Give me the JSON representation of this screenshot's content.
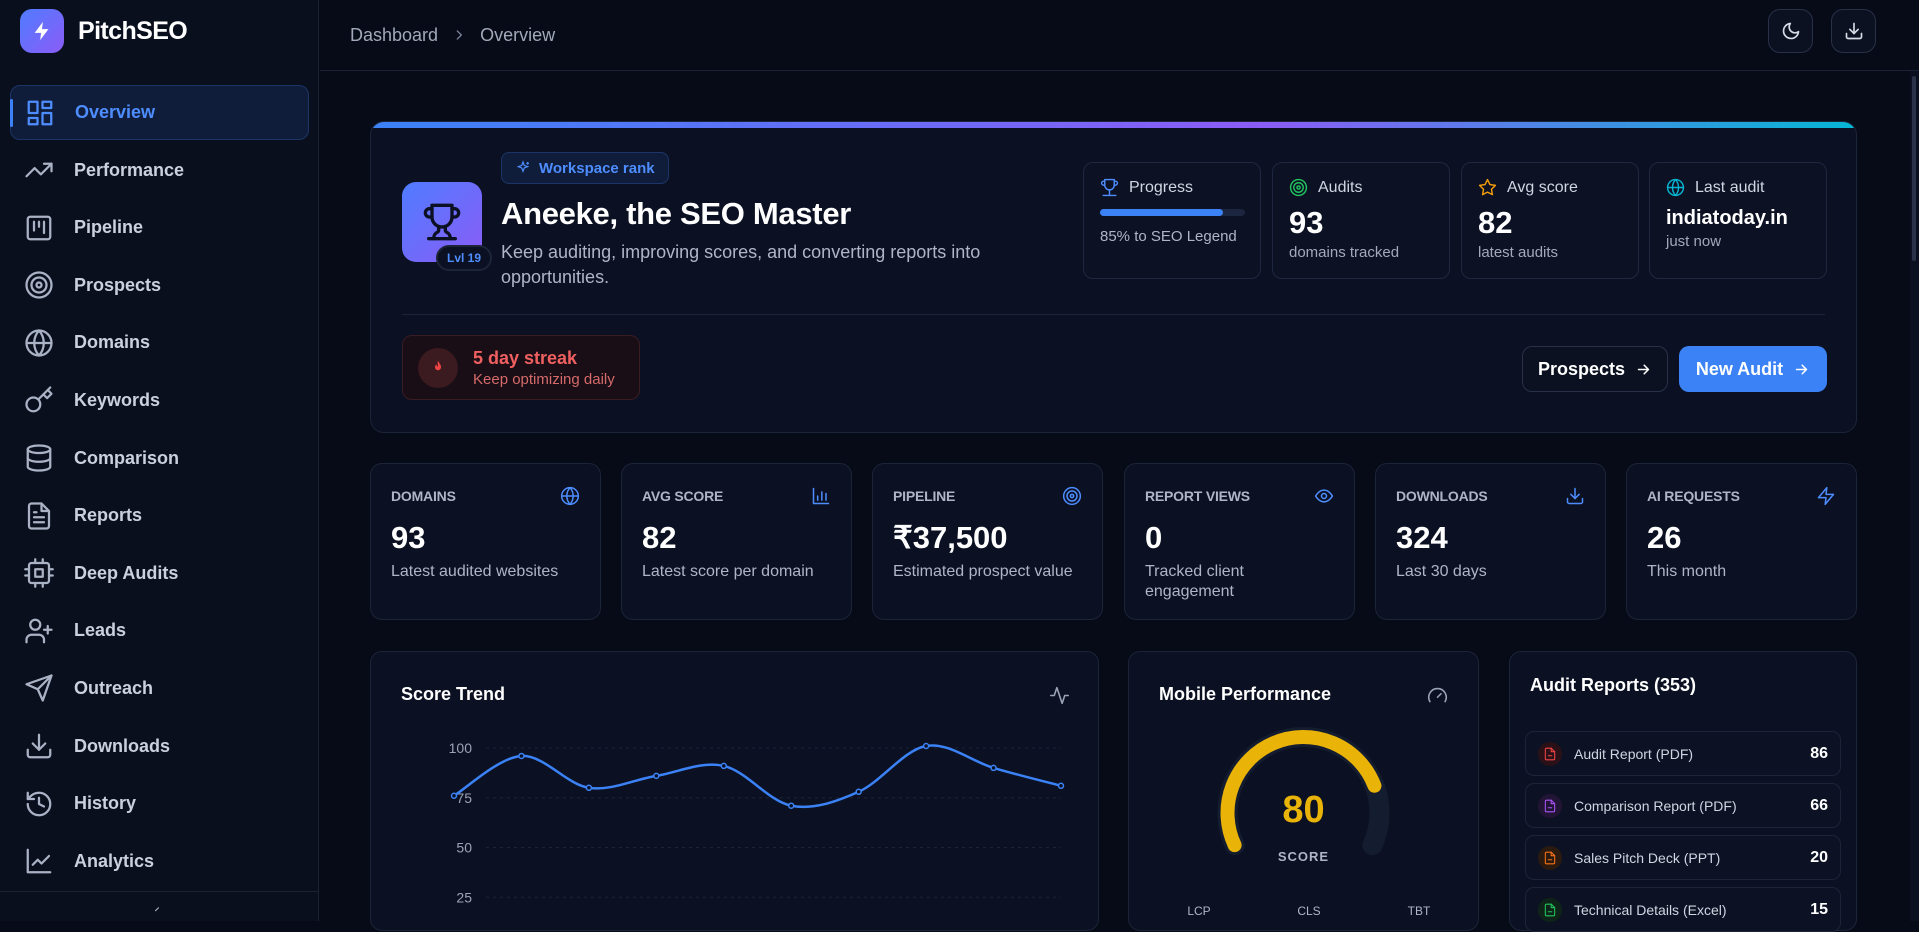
{
  "app": {
    "name": "PitchSEO"
  },
  "sidebar": {
    "items": [
      {
        "label": "Overview",
        "icon": "layout-dashboard-icon",
        "active": true
      },
      {
        "label": "Performance",
        "icon": "trending-up-icon"
      },
      {
        "label": "Pipeline",
        "icon": "kanban-icon"
      },
      {
        "label": "Prospects",
        "icon": "target-icon"
      },
      {
        "label": "Domains",
        "icon": "globe-icon"
      },
      {
        "label": "Keywords",
        "icon": "key-icon"
      },
      {
        "label": "Comparison",
        "icon": "database-icon"
      },
      {
        "label": "Reports",
        "icon": "file-text-icon"
      },
      {
        "label": "Deep Audits",
        "icon": "cpu-icon"
      },
      {
        "label": "Leads",
        "icon": "user-plus-icon"
      },
      {
        "label": "Outreach",
        "icon": "send-icon"
      },
      {
        "label": "Downloads",
        "icon": "download-icon"
      },
      {
        "label": "History",
        "icon": "history-icon"
      },
      {
        "label": "Analytics",
        "icon": "line-chart-icon"
      }
    ]
  },
  "breadcrumb": {
    "root": "Dashboard",
    "current": "Overview"
  },
  "hero": {
    "badge": "Workspace rank",
    "level": "Lvl 19",
    "title": "Aneeke, the SEO Master",
    "subtitle": "Keep auditing, improving scores, and converting reports into opportunities.",
    "stats": {
      "progress": {
        "label": "Progress",
        "text": "85% to SEO Legend",
        "value": 0.85
      },
      "audits": {
        "label": "Audits",
        "value": "93",
        "sub": "domains tracked"
      },
      "avg_score": {
        "label": "Avg score",
        "value": "82",
        "sub": "latest audits"
      },
      "last_audit": {
        "label": "Last audit",
        "value": "indiatoday.in",
        "sub": "just now"
      }
    },
    "streak": {
      "title": "5 day streak",
      "sub": "Keep optimizing daily"
    },
    "buttons": {
      "prospects": "Prospects",
      "new_audit": "New Audit"
    }
  },
  "kpis": [
    {
      "label": "DOMAINS",
      "value": "93",
      "desc": "Latest audited websites",
      "icon": "globe-icon"
    },
    {
      "label": "AVG SCORE",
      "value": "82",
      "desc": "Latest score per domain",
      "icon": "bar-chart-icon"
    },
    {
      "label": "PIPELINE",
      "value": "₹37,500",
      "desc": "Estimated prospect value",
      "icon": "target-icon"
    },
    {
      "label": "REPORT VIEWS",
      "value": "0",
      "desc": "Tracked client engagement",
      "icon": "eye-icon"
    },
    {
      "label": "DOWNLOADS",
      "value": "324",
      "desc": "Last 30 days",
      "icon": "download-icon"
    },
    {
      "label": "AI REQUESTS",
      "value": "26",
      "desc": "This month",
      "icon": "zap-icon"
    }
  ],
  "score_trend": {
    "title": "Score Trend"
  },
  "mobile": {
    "title": "Mobile Performance",
    "score": "80",
    "score_label": "SCORE",
    "score_value": 80,
    "metrics": [
      "LCP",
      "CLS",
      "TBT"
    ]
  },
  "reports": {
    "title": "Audit Reports (353)",
    "items": [
      {
        "name": "Audit Report (PDF)",
        "count": "86",
        "color": "#ef4444",
        "bg": "#2a1118"
      },
      {
        "name": "Comparison Report (PDF)",
        "count": "66",
        "color": "#a855f7",
        "bg": "#221434"
      },
      {
        "name": "Sales Pitch Deck (PPT)",
        "count": "20",
        "color": "#f97316",
        "bg": "#2a1a10"
      },
      {
        "name": "Technical Details (Excel)",
        "count": "15",
        "color": "#22c55e",
        "bg": "#0f2418"
      }
    ]
  },
  "chart_data": {
    "type": "line",
    "title": "Score Trend",
    "y_ticks": [
      "100",
      "75",
      "50",
      "25"
    ],
    "ylim": [
      0,
      100
    ],
    "grid": true,
    "series": [
      {
        "values": [
          76,
          96,
          80,
          86,
          91,
          71,
          78,
          101,
          90,
          81
        ]
      }
    ],
    "color": "#3b82f6"
  }
}
